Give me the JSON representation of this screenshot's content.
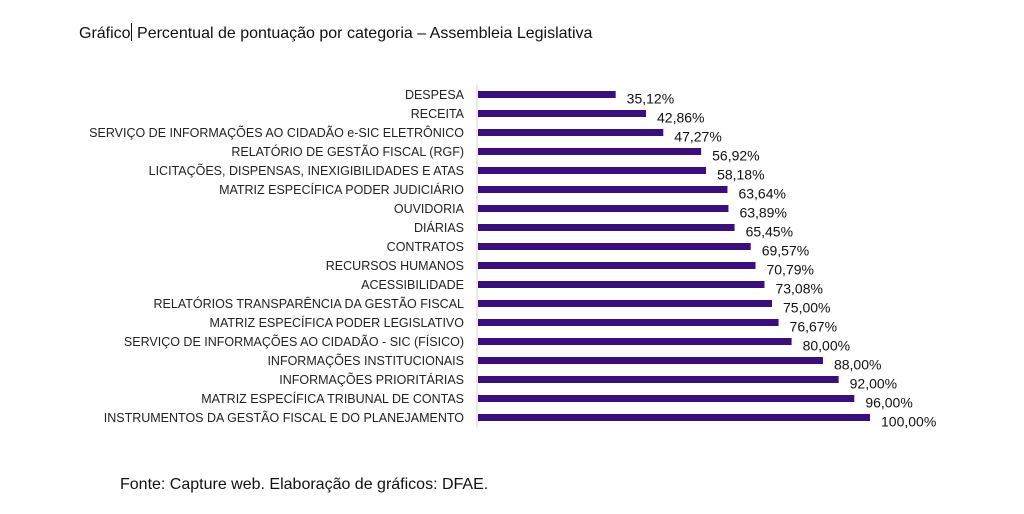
{
  "title_prefix": "Gráfico",
  "title_rest": " Percentual de pontuação por categoria – Assembleia Legislativa",
  "source": "Fonte: Capture web. Elaboração de gráficos: DFAE.",
  "chart_data": {
    "type": "bar",
    "orientation": "horizontal",
    "title": "Gráfico: Percentual de pontuação por categoria – Assembleia Legislativa",
    "xlabel": "",
    "ylabel": "",
    "xlim": [
      0,
      100
    ],
    "grid": false,
    "bar_color": "#3b0f7a",
    "categories": [
      "DESPESA",
      "RECEITA",
      "SERVIÇO DE INFORMAÇÕES AO CIDADÃO e-SIC ELETRÔNICO",
      "RELATÓRIO DE GESTÃO FISCAL (RGF)",
      "LICITAÇÕES, DISPENSAS, INEXIGIBILIDADES E ATAS",
      "MATRIZ ESPECÍFICA PODER JUDICIÁRIO",
      "OUVIDORIA",
      "DIÁRIAS",
      "CONTRATOS",
      "RECURSOS HUMANOS",
      "ACESSIBILIDADE",
      "RELATÓRIOS TRANSPARÊNCIA DA GESTÃO FISCAL",
      "MATRIZ ESPECÍFICA PODER LEGISLATIVO",
      "SERVIÇO DE INFORMAÇÕES AO CIDADÃO - SIC (FÍSICO)",
      "INFORMAÇÕES INSTITUCIONAIS",
      "INFORMAÇÕES PRIORITÁRIAS",
      "MATRIZ ESPECÍFICA TRIBUNAL DE CONTAS",
      "INSTRUMENTOS DA GESTÃO FISCAL E DO PLANEJAMENTO"
    ],
    "values": [
      35.12,
      42.86,
      47.27,
      56.92,
      58.18,
      63.64,
      63.89,
      65.45,
      69.57,
      70.79,
      73.08,
      75.0,
      76.67,
      80.0,
      88.0,
      92.0,
      96.0,
      100.0
    ],
    "labels": [
      "35,12%",
      "42,86%",
      "47,27%",
      "56,92%",
      "58,18%",
      "63,64%",
      "63,89%",
      "65,45%",
      "69,57%",
      "70,79%",
      "73,08%",
      "75,00%",
      "76,67%",
      "80,00%",
      "88,00%",
      "92,00%",
      "96,00%",
      "100,00%"
    ]
  }
}
